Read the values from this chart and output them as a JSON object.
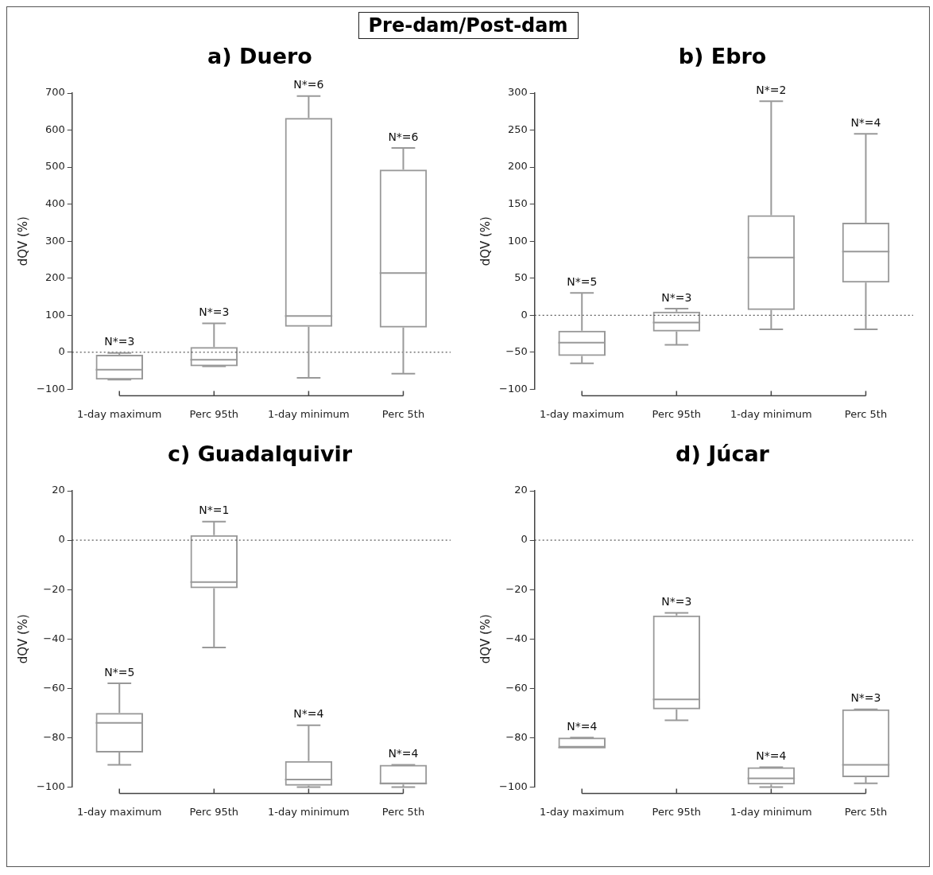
{
  "chart_data": [
    {
      "type": "box",
      "title": "a) Duero",
      "ylabel": "dQV (%)",
      "categories": [
        "1-day maximum",
        "Perc 95th",
        "1-day minimum",
        "Perc 5th"
      ],
      "ylim": [
        -100,
        700
      ],
      "yticks": [
        -100,
        0,
        100,
        200,
        300,
        400,
        500,
        600,
        700
      ],
      "grid": false,
      "legend": false,
      "series": [
        {
          "color": "#999999",
          "boxes": [
            {
              "low": -74,
              "q1": -74,
              "median": -47,
              "q3": -7,
              "high": -2
            },
            {
              "low": -38,
              "q1": -38,
              "median": -20,
              "q3": 14,
              "high": 78
            },
            {
              "low": -69,
              "q1": 69,
              "median": 98,
              "q3": 633,
              "high": 692
            },
            {
              "low": -58,
              "q1": 67,
              "median": 214,
              "q3": 493,
              "high": 552
            }
          ]
        }
      ],
      "ref_lines": [
        {
          "axis": "y",
          "value": 0,
          "color": "#333333",
          "line_style": "dotted"
        }
      ],
      "annotations": [
        "Pre-dam/Post-dam",
        {
          "text": "N*=3",
          "x": "1-day maximum",
          "y": -2
        },
        {
          "text": "N*=3",
          "x": "Perc 95th",
          "y": 78
        },
        {
          "text": "N*=6",
          "x": "1-day minimum",
          "y": 692
        },
        {
          "text": "N*=6",
          "x": "Perc 5th",
          "y": 552
        }
      ]
    },
    {
      "type": "box",
      "title": "b) Ebro",
      "ylabel": "dQV (%)",
      "categories": [
        "1-day maximum",
        "Perc 95th",
        "1-day minimum",
        "Perc 5th"
      ],
      "ylim": [
        -100,
        300
      ],
      "yticks": [
        -100,
        -50,
        0,
        50,
        100,
        150,
        200,
        250,
        300
      ],
      "grid": false,
      "legend": false,
      "series": [
        {
          "color": "#999999",
          "boxes": [
            {
              "low": -65,
              "q1": -55,
              "median": -37,
              "q3": -21,
              "high": 30
            },
            {
              "low": -40,
              "q1": -22,
              "median": -10,
              "q3": 5,
              "high": 9
            },
            {
              "low": -19,
              "q1": 7,
              "median": 78,
              "q3": 135,
              "high": 289
            },
            {
              "low": -19,
              "q1": 44,
              "median": 86,
              "q3": 125,
              "high": 245
            }
          ]
        }
      ],
      "ref_lines": [
        {
          "axis": "y",
          "value": 0,
          "color": "#333333",
          "line_style": "dotted"
        }
      ],
      "annotations": [
        {
          "text": "N*=5",
          "x": "1-day maximum",
          "y": 30
        },
        {
          "text": "N*=3",
          "x": "Perc 95th",
          "y": 9
        },
        {
          "text": "N*=2",
          "x": "1-day minimum",
          "y": 289
        },
        {
          "text": "N*=4",
          "x": "Perc 5th",
          "y": 245
        }
      ]
    },
    {
      "type": "box",
      "title": "c) Guadalquivir",
      "ylabel": "dQV (%)",
      "categories": [
        "1-day maximum",
        "Perc 95th",
        "1-day minimum",
        "Perc 5th"
      ],
      "ylim": [
        -100,
        20
      ],
      "yticks": [
        -100,
        -80,
        -60,
        -40,
        -20,
        0,
        20
      ],
      "grid": false,
      "legend": false,
      "series": [
        {
          "color": "#999999",
          "boxes": [
            {
              "low": -91,
              "q1": -86,
              "median": -74,
              "q3": -70,
              "high": -58
            },
            {
              "low": -43.5,
              "q1": -19.5,
              "median": -17,
              "q3": 2,
              "high": 7.5
            },
            {
              "low": -100,
              "q1": -99.5,
              "median": -97,
              "q3": -89.5,
              "high": -75
            },
            {
              "low": -100,
              "q1": -99,
              "median": -98.5,
              "q3": -91,
              "high": -91
            }
          ]
        }
      ],
      "ref_lines": [
        {
          "axis": "y",
          "value": 0,
          "color": "#333333",
          "line_style": "dotted"
        }
      ],
      "annotations": [
        {
          "text": "N*=5",
          "x": "1-day maximum",
          "y": -58
        },
        {
          "text": "N*=1",
          "x": "Perc 95th",
          "y": 7.5
        },
        {
          "text": "N*=4",
          "x": "1-day minimum",
          "y": -75
        },
        {
          "text": "N*=4",
          "x": "Perc 5th",
          "y": -91
        }
      ]
    },
    {
      "type": "box",
      "title": "d) Júcar",
      "ylabel": "dQV (%)",
      "categories": [
        "1-day maximum",
        "Perc 95th",
        "1-day minimum",
        "Perc 5th"
      ],
      "ylim": [
        -100,
        20
      ],
      "yticks": [
        -100,
        -80,
        -60,
        -40,
        -20,
        0,
        20
      ],
      "grid": false,
      "legend": false,
      "series": [
        {
          "color": "#999999",
          "boxes": [
            {
              "low": -84,
              "q1": -84,
              "median": -84,
              "q3": -80,
              "high": -80
            },
            {
              "low": -73,
              "q1": -68.5,
              "median": -64.5,
              "q3": -30.5,
              "high": -29.5
            },
            {
              "low": -100,
              "q1": -99,
              "median": -96.5,
              "q3": -92,
              "high": -92
            },
            {
              "low": -98.5,
              "q1": -96,
              "median": -91,
              "q3": -68.5,
              "high": -68.5
            }
          ]
        }
      ],
      "ref_lines": [
        {
          "axis": "y",
          "value": 0,
          "color": "#333333",
          "line_style": "dotted"
        }
      ],
      "annotations": [
        {
          "text": "N*=4",
          "x": "1-day maximum",
          "y": -80
        },
        {
          "text": "N*=3",
          "x": "Perc 95th",
          "y": -29.5
        },
        {
          "text": "N*=4",
          "x": "1-day minimum",
          "y": -92
        },
        {
          "text": "N*=3",
          "x": "Perc 5th",
          "y": -68.5
        }
      ]
    }
  ]
}
